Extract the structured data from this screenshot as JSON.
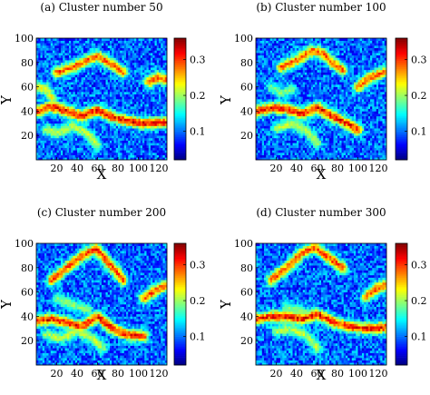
{
  "chart_data": [
    {
      "type": "heatmap",
      "title": "(a) Cluster number 50",
      "xlabel": "X",
      "ylabel": "Y",
      "xlim": [
        0,
        128
      ],
      "ylim": [
        0,
        100
      ],
      "x_ticks": [
        "20",
        "40",
        "60",
        "80",
        "100",
        "120"
      ],
      "y_ticks": [
        "20",
        "40",
        "60",
        "80",
        "100"
      ],
      "colorbar": {
        "ticks": [
          "0.1",
          "0.2",
          "0.3"
        ],
        "range": [
          0.02,
          0.36
        ]
      },
      "ridges": [
        {
          "points": [
            [
              0,
              40
            ],
            [
              15,
              44
            ],
            [
              30,
              40
            ],
            [
              45,
              36
            ],
            [
              60,
              41
            ],
            [
              75,
              35
            ],
            [
              90,
              32
            ],
            [
              105,
              30
            ],
            [
              128,
              31
            ]
          ],
          "peak": 0.33
        },
        {
          "points": [
            [
              20,
              72
            ],
            [
              35,
              76
            ],
            [
              50,
              82
            ],
            [
              60,
              85
            ],
            [
              72,
              80
            ],
            [
              85,
              72
            ]
          ],
          "peak": 0.3
        },
        {
          "points": [
            [
              10,
              25
            ],
            [
              20,
              22
            ],
            [
              35,
              28
            ],
            [
              50,
              22
            ],
            [
              60,
              12
            ]
          ],
          "peak": 0.22
        },
        {
          "points": [
            [
              110,
              64
            ],
            [
              120,
              68
            ],
            [
              128,
              66
            ]
          ],
          "peak": 0.3
        },
        {
          "points": [
            [
              0,
              60
            ],
            [
              10,
              58
            ],
            [
              15,
              52
            ]
          ],
          "peak": 0.24
        }
      ]
    },
    {
      "type": "heatmap",
      "title": "(b) Cluster number 100",
      "xlabel": "X",
      "ylabel": "Y",
      "xlim": [
        0,
        128
      ],
      "ylim": [
        0,
        100
      ],
      "x_ticks": [
        "20",
        "40",
        "60",
        "80",
        "100",
        "120"
      ],
      "y_ticks": [
        "20",
        "40",
        "60",
        "80",
        "100"
      ],
      "colorbar": {
        "ticks": [
          "0.1",
          "0.2",
          "0.3"
        ],
        "range": [
          0.02,
          0.36
        ]
      },
      "ridges": [
        {
          "points": [
            [
              0,
              40
            ],
            [
              15,
              43
            ],
            [
              30,
              42
            ],
            [
              45,
              38
            ],
            [
              60,
              43
            ],
            [
              75,
              36
            ],
            [
              90,
              30
            ],
            [
              100,
              25
            ]
          ],
          "peak": 0.33
        },
        {
          "points": [
            [
              25,
              76
            ],
            [
              40,
              82
            ],
            [
              55,
              90
            ],
            [
              65,
              88
            ],
            [
              75,
              80
            ],
            [
              85,
              74
            ]
          ],
          "peak": 0.3
        },
        {
          "points": [
            [
              20,
              26
            ],
            [
              35,
              30
            ],
            [
              50,
              24
            ],
            [
              60,
              14
            ]
          ],
          "peak": 0.22
        },
        {
          "points": [
            [
              100,
              60
            ],
            [
              112,
              68
            ],
            [
              125,
              72
            ]
          ],
          "peak": 0.3
        },
        {
          "points": [
            [
              15,
              60
            ],
            [
              25,
              55
            ],
            [
              35,
              58
            ]
          ],
          "peak": 0.2
        }
      ]
    },
    {
      "type": "heatmap",
      "title": "(c) Cluster number 200",
      "xlabel": "X",
      "ylabel": "Y",
      "xlim": [
        0,
        128
      ],
      "ylim": [
        0,
        100
      ],
      "x_ticks": [
        "20",
        "40",
        "60",
        "80",
        "100",
        "120"
      ],
      "y_ticks": [
        "20",
        "40",
        "60",
        "80",
        "100"
      ],
      "colorbar": {
        "ticks": [
          "0.1",
          "0.2",
          "0.3"
        ],
        "range": [
          0.02,
          0.36
        ]
      },
      "ridges": [
        {
          "points": [
            [
              0,
              36
            ],
            [
              15,
              38
            ],
            [
              30,
              35
            ],
            [
              45,
              32
            ],
            [
              60,
              40
            ],
            [
              75,
              30
            ],
            [
              90,
              25
            ],
            [
              105,
              24
            ]
          ],
          "peak": 0.33
        },
        {
          "points": [
            [
              15,
              70
            ],
            [
              30,
              80
            ],
            [
              45,
              90
            ],
            [
              58,
              96
            ],
            [
              70,
              85
            ],
            [
              85,
              70
            ]
          ],
          "peak": 0.31
        },
        {
          "points": [
            [
              10,
              25
            ],
            [
              25,
              22
            ],
            [
              40,
              28
            ],
            [
              55,
              22
            ],
            [
              65,
              14
            ]
          ],
          "peak": 0.22
        },
        {
          "points": [
            [
              105,
              55
            ],
            [
              118,
              62
            ],
            [
              128,
              66
            ]
          ],
          "peak": 0.3
        },
        {
          "points": [
            [
              20,
              55
            ],
            [
              35,
              50
            ],
            [
              50,
              46
            ]
          ],
          "peak": 0.2
        }
      ]
    },
    {
      "type": "heatmap",
      "title": "(d) Cluster number 300",
      "xlabel": "X",
      "ylabel": "Y",
      "xlim": [
        0,
        128
      ],
      "ylim": [
        0,
        100
      ],
      "x_ticks": [
        "20",
        "40",
        "60",
        "80",
        "100",
        "120"
      ],
      "y_ticks": [
        "20",
        "40",
        "60",
        "80",
        "100"
      ],
      "colorbar": {
        "ticks": [
          "0.1",
          "0.2",
          "0.3"
        ],
        "range": [
          0.02,
          0.36
        ]
      },
      "ridges": [
        {
          "points": [
            [
              0,
              38
            ],
            [
              15,
              40
            ],
            [
              30,
              40
            ],
            [
              45,
              38
            ],
            [
              60,
              42
            ],
            [
              75,
              36
            ],
            [
              90,
              32
            ],
            [
              110,
              30
            ],
            [
              128,
              31
            ]
          ],
          "peak": 0.33
        },
        {
          "points": [
            [
              15,
              70
            ],
            [
              30,
              80
            ],
            [
              45,
              92
            ],
            [
              58,
              97
            ],
            [
              72,
              88
            ],
            [
              85,
              80
            ]
          ],
          "peak": 0.31
        },
        {
          "points": [
            [
              20,
              28
            ],
            [
              35,
              30
            ],
            [
              50,
              24
            ],
            [
              60,
              14
            ]
          ],
          "peak": 0.22
        },
        {
          "points": [
            [
              108,
              56
            ],
            [
              120,
              64
            ],
            [
              128,
              66
            ]
          ],
          "peak": 0.3
        },
        {
          "points": [
            [
              30,
              48
            ],
            [
              45,
              44
            ],
            [
              55,
              40
            ]
          ],
          "peak": 0.2
        }
      ]
    }
  ]
}
